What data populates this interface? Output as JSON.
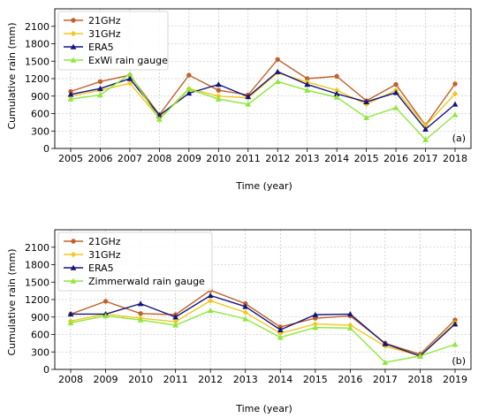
{
  "chart_data": [
    {
      "type": "line",
      "panel_label": "(a)",
      "xlabel": "Time (year)",
      "ylabel": "Cumulative rain (mm)",
      "categories": [
        "2005",
        "2006",
        "2007",
        "2008",
        "2009",
        "2010",
        "2011",
        "2012",
        "2013",
        "2014",
        "2015",
        "2016",
        "2017",
        "2018"
      ],
      "ylim": [
        0,
        2400
      ],
      "yticks": [
        0,
        300,
        600,
        900,
        1200,
        1500,
        1800,
        2100
      ],
      "grid": true,
      "legend_position": "top-left",
      "series": [
        {
          "name": "21GHz",
          "color": "#c0622a",
          "marker": "circle",
          "values": [
            980,
            1150,
            1260,
            580,
            1260,
            1000,
            920,
            1530,
            1200,
            1240,
            820,
            1100,
            400,
            1110
          ]
        },
        {
          "name": "31GHz",
          "color": "#f0c820",
          "marker": "diamond",
          "values": [
            900,
            1000,
            1120,
            520,
            1030,
            900,
            870,
            1300,
            1140,
            1000,
            760,
            1000,
            390,
            940
          ]
        },
        {
          "name": "ERA5",
          "color": "#15157a",
          "marker": "triangle",
          "values": [
            930,
            1030,
            1200,
            570,
            950,
            1100,
            890,
            1320,
            1100,
            940,
            800,
            960,
            330,
            760
          ]
        },
        {
          "name": "ExWi rain gauge",
          "color": "#8ee83a",
          "marker": "triangle",
          "values": [
            850,
            920,
            1280,
            500,
            1020,
            850,
            760,
            1150,
            1000,
            880,
            530,
            700,
            150,
            580
          ]
        }
      ]
    },
    {
      "type": "line",
      "panel_label": "(b)",
      "xlabel": "Time (year)",
      "ylabel": "Cumulative rain (mm)",
      "categories": [
        "2008",
        "2009",
        "2010",
        "2011",
        "2012",
        "2013",
        "2014",
        "2015",
        "2016",
        "2017",
        "2018",
        "2019"
      ],
      "ylim": [
        0,
        2400
      ],
      "yticks": [
        0,
        300,
        600,
        900,
        1200,
        1500,
        1800,
        2100
      ],
      "grid": true,
      "legend_position": "top-left",
      "series": [
        {
          "name": "21GHz",
          "color": "#c0622a",
          "marker": "circle",
          "values": [
            950,
            1170,
            960,
            940,
            1360,
            1130,
            730,
            880,
            920,
            450,
            260,
            850
          ]
        },
        {
          "name": "31GHz",
          "color": "#f0c820",
          "marker": "diamond",
          "values": [
            830,
            950,
            880,
            820,
            1180,
            980,
            620,
            780,
            760,
            400,
            230,
            800
          ]
        },
        {
          "name": "ERA5",
          "color": "#15157a",
          "marker": "triangle",
          "values": [
            950,
            950,
            1130,
            900,
            1270,
            1080,
            680,
            940,
            950,
            440,
            230,
            780
          ]
        },
        {
          "name": "Zimmerwald rain gauge",
          "color": "#8ee83a",
          "marker": "triangle",
          "values": [
            800,
            920,
            850,
            760,
            1010,
            870,
            550,
            720,
            710,
            120,
            230,
            430
          ]
        }
      ]
    }
  ]
}
